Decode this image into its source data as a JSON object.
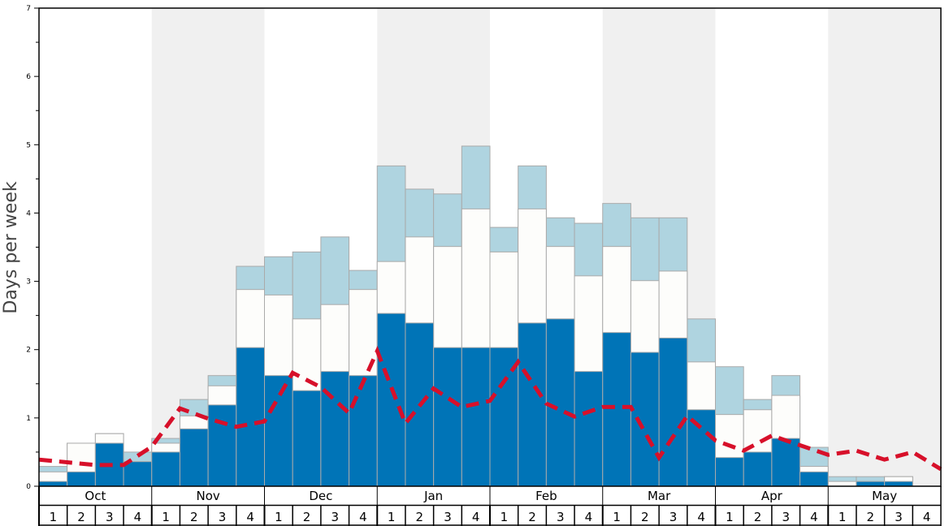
{
  "chart_data": {
    "type": "bar",
    "stacked": true,
    "ylabel": "Days per week",
    "ylim": [
      0,
      7
    ],
    "yticks": [
      "0",
      "1",
      "2",
      "3",
      "4",
      "5",
      "6",
      "7"
    ],
    "months": [
      "Oct",
      "Nov",
      "Dec",
      "Jan",
      "Feb",
      "Mar",
      "Apr",
      "May"
    ],
    "weeks": [
      "1",
      "2",
      "3",
      "4"
    ],
    "shaded_months": [
      "Nov",
      "Jan",
      "Mar",
      "May"
    ],
    "colors": {
      "dark": "#0074b7",
      "mid": "#fdfdfb",
      "light": "#afd4e0",
      "line": "#d7102a",
      "shade": "#f0f0f0"
    },
    "series_cumulative": [
      {
        "name": "dark",
        "values": [
          0.07,
          0.21,
          0.63,
          0.36,
          0.5,
          0.84,
          1.19,
          2.03,
          1.62,
          1.4,
          1.68,
          1.62,
          2.53,
          2.39,
          2.03,
          2.03,
          2.03,
          2.39,
          2.45,
          1.68,
          2.25,
          1.96,
          2.17,
          1.12,
          0.42,
          0.5,
          0.7,
          0.21,
          0,
          0.07,
          0.07,
          0
        ]
      },
      {
        "name": "mid",
        "values": [
          0.21,
          0.63,
          0.77,
          0.36,
          0.63,
          1.03,
          1.47,
          2.88,
          2.8,
          2.45,
          2.66,
          2.88,
          3.29,
          3.65,
          3.51,
          4.06,
          3.43,
          4.06,
          3.51,
          3.08,
          3.51,
          3.01,
          3.15,
          1.82,
          1.05,
          1.12,
          1.33,
          0.29,
          0.07,
          0.07,
          0.14,
          0
        ]
      },
      {
        "name": "light",
        "values": [
          0.29,
          0.63,
          0.77,
          0.5,
          0.7,
          1.27,
          1.62,
          3.22,
          3.36,
          3.43,
          3.65,
          3.16,
          4.69,
          4.35,
          4.28,
          4.98,
          3.79,
          4.69,
          3.93,
          3.85,
          4.14,
          3.93,
          3.93,
          2.45,
          1.75,
          1.27,
          1.62,
          0.57,
          0.14,
          0.14,
          0.14,
          0
        ]
      }
    ],
    "line": {
      "name": "average",
      "style": "dashed",
      "values": [
        0.39,
        0.35,
        0.31,
        0.31,
        0.58,
        1.14,
        0.99,
        0.87,
        0.95,
        1.66,
        1.45,
        1.07,
        1.98,
        0.92,
        1.43,
        1.16,
        1.25,
        1.82,
        1.21,
        1.02,
        1.16,
        1.16,
        0.42,
        1.03,
        0.67,
        0.52,
        0.74,
        0.6,
        0.46,
        0.52,
        0.39,
        0.5,
        0.25
      ]
    }
  }
}
